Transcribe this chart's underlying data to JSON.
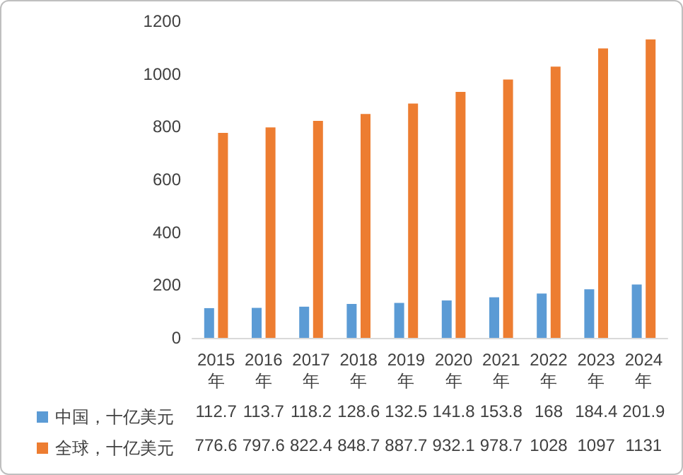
{
  "chart_data": {
    "type": "bar",
    "categories": [
      "2015年",
      "2016年",
      "2017年",
      "2018年",
      "2019年",
      "2020年",
      "2021年",
      "2022年",
      "2023年",
      "2024年"
    ],
    "series": [
      {
        "name": "中国，十亿美元",
        "color": "#5b9bd5",
        "values": [
          112.7,
          113.7,
          118.2,
          128.6,
          132.5,
          141.8,
          153.8,
          168,
          184.4,
          201.9
        ]
      },
      {
        "name": "全球，十亿美元",
        "color": "#ed7d31",
        "values": [
          776.6,
          797.6,
          822.4,
          848.7,
          887.7,
          932.1,
          978.7,
          1028,
          1097,
          1131
        ]
      }
    ],
    "ylim": [
      0,
      1200
    ],
    "yticks": [
      0,
      200,
      400,
      600,
      800,
      1000,
      1200
    ],
    "grid": false,
    "legend": "bottom left",
    "data_labels": true
  }
}
